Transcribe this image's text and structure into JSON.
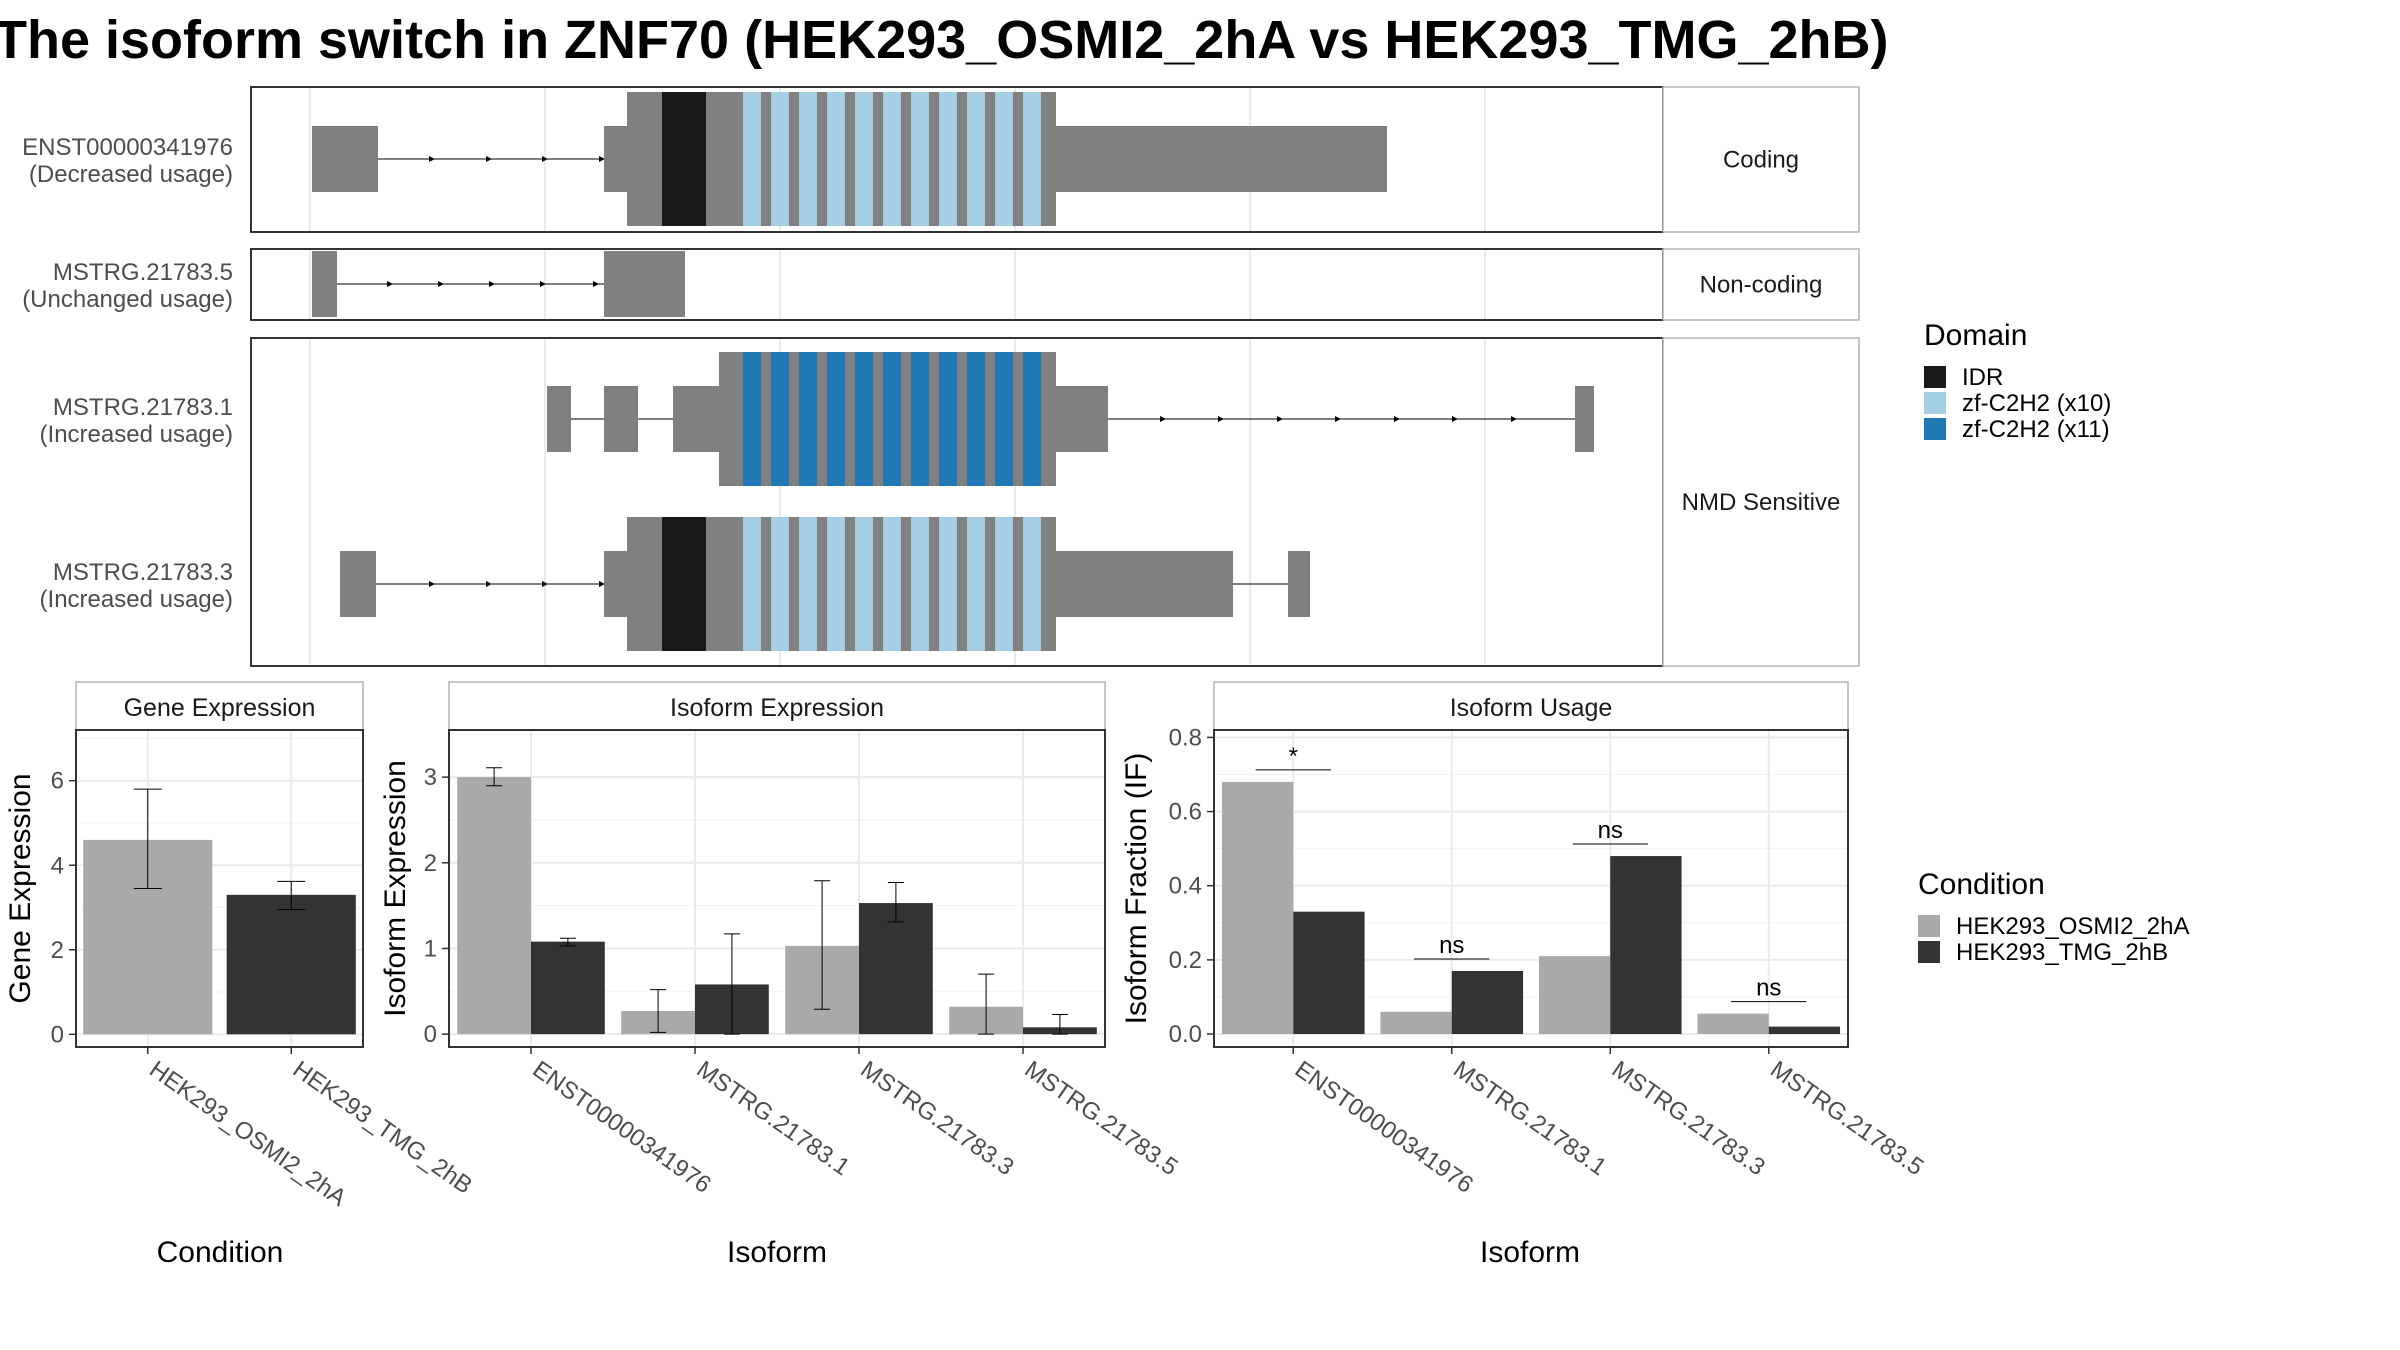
{
  "title": "The isoform switch in ZNF70 (HEK293_OSMI2_2hA vs HEK293_TMG_2hB)",
  "colors": {
    "exon": "#808080",
    "idr": "#1a1a1a",
    "zf10": "#a6cee3",
    "zf11": "#1f78b4",
    "cond1": "#a9a9a9",
    "cond2": "#333333",
    "panel_border": "#333333",
    "strip_border": "#b3b3b3",
    "grid": "#ebebeb"
  },
  "structure": {
    "facets": [
      "Coding",
      "Non-coding",
      "NMD Sensitive"
    ],
    "transcripts": [
      {
        "id": "ENST00000341976",
        "usage": "(Decreased usage)",
        "facet": "Coding"
      },
      {
        "id": "MSTRG.21783.5",
        "usage": "(Unchanged usage)",
        "facet": "Non-coding"
      },
      {
        "id": "MSTRG.21783.1",
        "usage": "(Increased usage)",
        "facet": "NMD Sensitive"
      },
      {
        "id": "MSTRG.21783.3",
        "usage": "(Increased usage)",
        "facet": "NMD Sensitive"
      }
    ],
    "domain_legend": {
      "title": "Domain",
      "items": [
        {
          "label": "IDR",
          "color": "#1a1a1a"
        },
        {
          "label": "zf-C2H2 (x10)",
          "color": "#a6cee3"
        },
        {
          "label": "zf-C2H2 (x11)",
          "color": "#1f78b4"
        }
      ]
    }
  },
  "condition_legend": {
    "title": "Condition",
    "items": [
      {
        "label": "HEK293_OSMI2_2hA",
        "color": "#a9a9a9"
      },
      {
        "label": "HEK293_TMG_2hB",
        "color": "#333333"
      }
    ]
  },
  "chart_data": [
    {
      "type": "bar",
      "title": "Gene Expression",
      "xlabel": "Condition",
      "ylabel": "Gene Expression",
      "categories": [
        "HEK293_OSMI2_2hA",
        "HEK293_TMG_2hB"
      ],
      "values": [
        4.6,
        3.3
      ],
      "error_low": [
        3.45,
        2.95
      ],
      "error_high": [
        5.8,
        3.62
      ],
      "ylim": [
        -0.3,
        7.2
      ],
      "yticks": [
        0,
        2,
        4,
        6
      ],
      "ytick_labels": [
        "0",
        "2",
        "4",
        "6"
      ]
    },
    {
      "type": "bar",
      "title": "Isoform Expression",
      "xlabel": "Isoform",
      "ylabel": "Isoform Expression",
      "categories": [
        "ENST00000341976",
        "MSTRG.21783.1",
        "MSTRG.21783.3",
        "MSTRG.21783.5"
      ],
      "series": [
        {
          "name": "HEK293_OSMI2_2hA",
          "values": [
            3.0,
            0.27,
            1.03,
            0.32
          ],
          "error_low": [
            2.9,
            0.02,
            0.29,
            0.0
          ],
          "error_high": [
            3.11,
            0.52,
            1.79,
            0.7
          ]
        },
        {
          "name": "HEK293_TMG_2hB",
          "values": [
            1.08,
            0.58,
            1.53,
            0.08
          ],
          "error_low": [
            1.03,
            0.0,
            1.31,
            0.0
          ],
          "error_high": [
            1.12,
            1.17,
            1.77,
            0.23
          ]
        }
      ],
      "ylim": [
        -0.15,
        3.55
      ],
      "yticks": [
        0,
        1,
        2,
        3
      ],
      "ytick_labels": [
        "0",
        "1",
        "2",
        "3"
      ]
    },
    {
      "type": "bar",
      "title": "Isoform Usage",
      "xlabel": "Isoform",
      "ylabel": "Isoform Fraction (IF)",
      "categories": [
        "ENST00000341976",
        "MSTRG.21783.1",
        "MSTRG.21783.3",
        "MSTRG.21783.5"
      ],
      "series": [
        {
          "name": "HEK293_OSMI2_2hA",
          "values": [
            0.68,
            0.06,
            0.21,
            0.055
          ]
        },
        {
          "name": "HEK293_TMG_2hB",
          "values": [
            0.33,
            0.17,
            0.48,
            0.02
          ]
        }
      ],
      "significance": [
        "*",
        "ns",
        "ns",
        "ns"
      ],
      "ylim": [
        -0.035,
        0.82
      ],
      "yticks": [
        0.0,
        0.2,
        0.4,
        0.6,
        0.8
      ],
      "ytick_labels": [
        "0.0",
        "0.2",
        "0.4",
        "0.6",
        "0.8"
      ]
    }
  ]
}
